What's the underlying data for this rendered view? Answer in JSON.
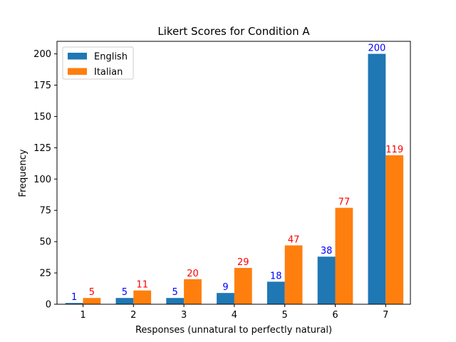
{
  "chart_data": {
    "type": "bar",
    "title": "Likert Scores for Condition A",
    "xlabel": "Responses (unnatural to perfectly natural)",
    "ylabel": "Frequency",
    "categories": [
      "1",
      "2",
      "3",
      "4",
      "5",
      "6",
      "7"
    ],
    "series": [
      {
        "name": "English",
        "values": [
          1,
          5,
          5,
          9,
          18,
          38,
          200
        ],
        "color": "#1f77b4",
        "label_color": "#0000ff"
      },
      {
        "name": "Italian",
        "values": [
          5,
          11,
          20,
          29,
          47,
          77,
          119
        ],
        "color": "#ff7f0e",
        "label_color": "#ff0000"
      }
    ],
    "ylim": [
      0,
      210
    ],
    "yticks": [
      0,
      25,
      50,
      75,
      100,
      125,
      150,
      175,
      200
    ],
    "legend_position": "top-left",
    "grid": false
  }
}
